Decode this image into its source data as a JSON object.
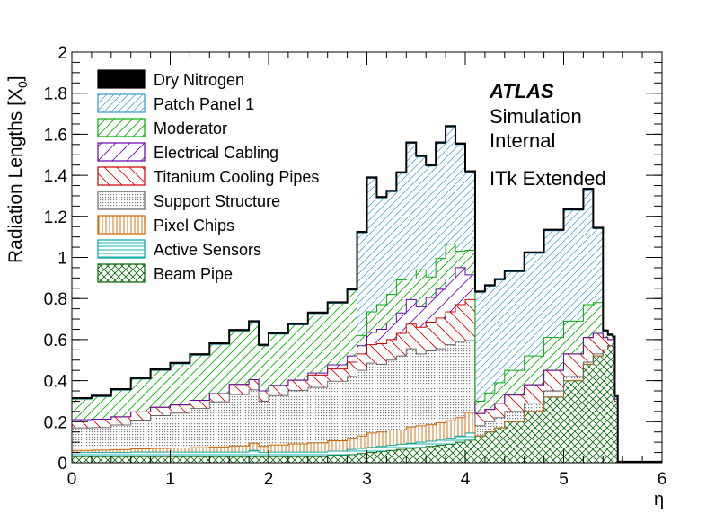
{
  "chart_data": {
    "type": "area",
    "stacked": true,
    "xlabel": "η",
    "ylabel": "Radiation Lengths [X",
    "ylabel_sub": "0",
    "ylabel_close": "]",
    "xlim": [
      0,
      6
    ],
    "ylim": [
      0,
      2
    ],
    "x_ticks": [
      "0",
      "1",
      "2",
      "3",
      "4",
      "5",
      "6"
    ],
    "y_ticks": [
      "0",
      "0.2",
      "0.4",
      "0.6",
      "0.8",
      "1",
      "1.2",
      "1.4",
      "1.6",
      "1.8",
      "2"
    ],
    "grid": false,
    "legend_position": "top-left",
    "annotation": {
      "experiment": "ATLAS",
      "line1": "Simulation",
      "line2": "Internal",
      "line3": "ITk Extended"
    },
    "x": [
      0,
      0.2,
      0.4,
      0.6,
      0.8,
      1.0,
      1.2,
      1.4,
      1.6,
      1.8,
      1.9,
      2.0,
      2.2,
      2.4,
      2.6,
      2.8,
      2.9,
      3.0,
      3.1,
      3.2,
      3.3,
      3.4,
      3.5,
      3.6,
      3.7,
      3.8,
      3.9,
      4.0,
      4.1,
      4.2,
      4.3,
      4.4,
      4.6,
      4.8,
      5.0,
      5.2,
      5.3,
      5.4,
      5.45,
      5.5,
      5.52,
      5.55,
      5.6,
      5.8,
      6.0
    ],
    "series": [
      {
        "name": "Beam Pipe",
        "color": "#006400",
        "fill": "crosshatch",
        "values": [
          0.03,
          0.03,
          0.03,
          0.03,
          0.03,
          0.03,
          0.03,
          0.03,
          0.03,
          0.03,
          0.03,
          0.03,
          0.03,
          0.03,
          0.035,
          0.04,
          0.045,
          0.05,
          0.055,
          0.06,
          0.065,
          0.07,
          0.075,
          0.08,
          0.085,
          0.09,
          0.1,
          0.11,
          0.13,
          0.15,
          0.17,
          0.2,
          0.25,
          0.32,
          0.4,
          0.48,
          0.52,
          0.55,
          0.57,
          0.58,
          0.3,
          0.0,
          0.0,
          0.0,
          0.0
        ]
      },
      {
        "name": "Active Sensors",
        "color": "#00aaaa",
        "fill": "horizontal",
        "values": [
          0.02,
          0.02,
          0.02,
          0.022,
          0.022,
          0.022,
          0.022,
          0.022,
          0.022,
          0.03,
          0.02,
          0.022,
          0.022,
          0.022,
          0.022,
          0.025,
          0.025,
          0.025,
          0.025,
          0.025,
          0.025,
          0.025,
          0.025,
          0.025,
          0.025,
          0.03,
          0.03,
          0.035,
          0.0,
          0.0,
          0.0,
          0.0,
          0.0,
          0.0,
          0.0,
          0.0,
          0.0,
          0.0,
          0.0,
          0.0,
          0.0,
          0.0,
          0.0,
          0.0,
          0.0
        ]
      },
      {
        "name": "Pixel Chips",
        "color": "#cc6600",
        "fill": "vertical",
        "values": [
          0.01,
          0.012,
          0.014,
          0.016,
          0.018,
          0.02,
          0.022,
          0.025,
          0.03,
          0.035,
          0.03,
          0.035,
          0.04,
          0.045,
          0.05,
          0.055,
          0.06,
          0.07,
          0.07,
          0.075,
          0.07,
          0.08,
          0.08,
          0.08,
          0.085,
          0.085,
          0.09,
          0.1,
          0.0,
          0.0,
          0.0,
          0.0,
          0.0,
          0.0,
          0.0,
          0.0,
          0.0,
          0.0,
          0.0,
          0.0,
          0.0,
          0.0,
          0.0,
          0.0,
          0.0
        ]
      },
      {
        "name": "Support Structure",
        "color": "#666666",
        "fill": "dots",
        "values": [
          0.11,
          0.11,
          0.12,
          0.14,
          0.16,
          0.17,
          0.19,
          0.22,
          0.25,
          0.26,
          0.22,
          0.24,
          0.26,
          0.27,
          0.29,
          0.3,
          0.32,
          0.34,
          0.33,
          0.34,
          0.36,
          0.38,
          0.35,
          0.36,
          0.36,
          0.37,
          0.37,
          0.35,
          0.05,
          0.05,
          0.05,
          0.05,
          0.04,
          0.03,
          0.02,
          0.01,
          0.01,
          0.0,
          0.0,
          0.0,
          0.0,
          0.0,
          0.0,
          0.0,
          0.0
        ]
      },
      {
        "name": "Titanium Cooling Pipes",
        "color": "#cc0000",
        "fill": "diag-right",
        "values": [
          0.04,
          0.04,
          0.04,
          0.04,
          0.04,
          0.04,
          0.04,
          0.04,
          0.05,
          0.05,
          0.05,
          0.05,
          0.05,
          0.06,
          0.06,
          0.07,
          0.08,
          0.09,
          0.1,
          0.1,
          0.11,
          0.12,
          0.13,
          0.14,
          0.15,
          0.16,
          0.18,
          0.2,
          0.06,
          0.06,
          0.07,
          0.08,
          0.09,
          0.1,
          0.11,
          0.12,
          0.1,
          0.06,
          0.03,
          0.02,
          0.01,
          0.0,
          0.0,
          0.0,
          0.0
        ]
      },
      {
        "name": "Electrical Cabling",
        "color": "#6600aa",
        "fill": "diag-left-wide",
        "values": [
          0.0,
          0.0,
          0.0,
          0.0,
          0.0,
          0.0,
          0.0,
          0.0,
          0.0,
          0.0,
          0.0,
          0.0,
          0.0,
          0.01,
          0.02,
          0.03,
          0.04,
          0.06,
          0.07,
          0.08,
          0.1,
          0.12,
          0.1,
          0.12,
          0.14,
          0.16,
          0.18,
          0.12,
          0.0,
          0.0,
          0.0,
          0.0,
          0.0,
          0.0,
          0.0,
          0.0,
          0.0,
          0.0,
          0.0,
          0.0,
          0.0,
          0.0,
          0.0,
          0.0,
          0.0
        ]
      },
      {
        "name": "Moderator",
        "color": "#00aa00",
        "fill": "diag-left",
        "values": [
          0.1,
          0.11,
          0.13,
          0.16,
          0.18,
          0.2,
          0.22,
          0.24,
          0.26,
          0.28,
          0.22,
          0.25,
          0.27,
          0.29,
          0.3,
          0.32,
          0.05,
          0.1,
          0.12,
          0.14,
          0.16,
          0.1,
          0.18,
          0.1,
          0.15,
          0.17,
          0.08,
          0.12,
          0.06,
          0.08,
          0.1,
          0.12,
          0.14,
          0.16,
          0.16,
          0.16,
          0.15,
          0.03,
          0.02,
          0.01,
          0.01,
          0.0,
          0.0,
          0.0,
          0.0
        ]
      },
      {
        "name": "Patch Panel 1",
        "color": "#3399cc",
        "fill": "diag-right-fine",
        "values": [
          0.0,
          0.0,
          0.0,
          0.0,
          0.0,
          0.0,
          0.0,
          0.0,
          0.0,
          0.0,
          0.0,
          0.0,
          0.0,
          0.0,
          0.0,
          0.0,
          0.5,
          0.65,
          0.52,
          0.5,
          0.52,
          0.66,
          0.55,
          0.54,
          0.56,
          0.57,
          0.52,
          0.38,
          0.53,
          0.52,
          0.5,
          0.48,
          0.5,
          0.52,
          0.54,
          0.56,
          0.36,
          0.0,
          0.0,
          0.0,
          0.0,
          0.0,
          0.0,
          0.0,
          0.0
        ]
      },
      {
        "name": "Dry Nitrogen",
        "color": "#000000",
        "fill": "solid",
        "values": [
          0.005,
          0.005,
          0.005,
          0.005,
          0.005,
          0.005,
          0.005,
          0.005,
          0.005,
          0.005,
          0.005,
          0.005,
          0.005,
          0.005,
          0.005,
          0.005,
          0.005,
          0.005,
          0.005,
          0.005,
          0.005,
          0.005,
          0.005,
          0.005,
          0.005,
          0.005,
          0.005,
          0.005,
          0.005,
          0.005,
          0.005,
          0.005,
          0.005,
          0.005,
          0.005,
          0.005,
          0.005,
          0.005,
          0.005,
          0.005,
          0.005,
          0.005,
          0.005,
          0.005,
          0.005
        ]
      }
    ],
    "legend_order": [
      "Dry Nitrogen",
      "Patch Panel 1",
      "Moderator",
      "Electrical Cabling",
      "Titanium Cooling Pipes",
      "Support Structure",
      "Pixel Chips",
      "Active Sensors",
      "Beam Pipe"
    ]
  }
}
